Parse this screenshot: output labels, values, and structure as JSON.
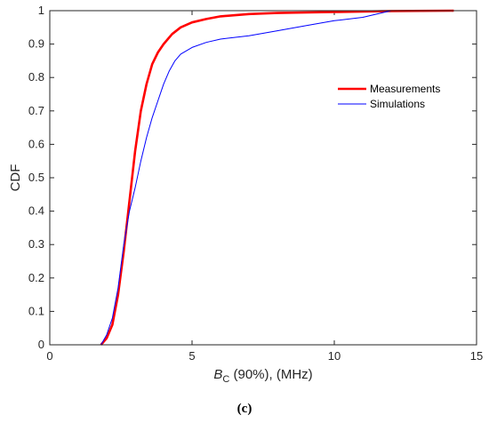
{
  "caption": "(c)",
  "chart_data": {
    "type": "line",
    "xlabel_main": "B",
    "xlabel_sub": "C",
    "xlabel_rest": " (90%), (MHz)",
    "ylabel": "CDF",
    "xlim": [
      0,
      15
    ],
    "ylim": [
      0,
      1
    ],
    "xticks": [
      "0",
      "5",
      "10",
      "15"
    ],
    "yticks": [
      "0",
      "0.1",
      "0.2",
      "0.3",
      "0.4",
      "0.5",
      "0.6",
      "0.7",
      "0.8",
      "0.9",
      "1"
    ],
    "grid": false,
    "legend_position": "upper-right",
    "series": [
      {
        "name": "Measurements",
        "color": "#ff0000",
        "points": [
          [
            1.8,
            0
          ],
          [
            2.0,
            0.02
          ],
          [
            2.2,
            0.06
          ],
          [
            2.4,
            0.15
          ],
          [
            2.6,
            0.28
          ],
          [
            2.8,
            0.43
          ],
          [
            3.0,
            0.58
          ],
          [
            3.2,
            0.7
          ],
          [
            3.4,
            0.78
          ],
          [
            3.6,
            0.84
          ],
          [
            3.8,
            0.875
          ],
          [
            4.0,
            0.9
          ],
          [
            4.3,
            0.93
          ],
          [
            4.6,
            0.95
          ],
          [
            5.0,
            0.965
          ],
          [
            5.5,
            0.975
          ],
          [
            6.0,
            0.983
          ],
          [
            7.0,
            0.99
          ],
          [
            8.0,
            0.993
          ],
          [
            10.0,
            0.996
          ],
          [
            12.0,
            0.999
          ],
          [
            14.2,
            1.0
          ]
        ]
      },
      {
        "name": "Simulations",
        "color": "#0000ff",
        "points": [
          [
            1.8,
            0
          ],
          [
            2.0,
            0.03
          ],
          [
            2.2,
            0.08
          ],
          [
            2.4,
            0.17
          ],
          [
            2.6,
            0.3
          ],
          [
            2.8,
            0.4
          ],
          [
            3.0,
            0.47
          ],
          [
            3.2,
            0.55
          ],
          [
            3.4,
            0.62
          ],
          [
            3.6,
            0.68
          ],
          [
            3.8,
            0.73
          ],
          [
            4.0,
            0.78
          ],
          [
            4.2,
            0.82
          ],
          [
            4.4,
            0.85
          ],
          [
            4.6,
            0.87
          ],
          [
            5.0,
            0.89
          ],
          [
            5.5,
            0.905
          ],
          [
            6.0,
            0.915
          ],
          [
            7.0,
            0.925
          ],
          [
            8.0,
            0.94
          ],
          [
            9.0,
            0.955
          ],
          [
            10.0,
            0.97
          ],
          [
            11.0,
            0.98
          ],
          [
            12.0,
            1.0
          ],
          [
            14.2,
            1.0
          ]
        ]
      }
    ]
  }
}
